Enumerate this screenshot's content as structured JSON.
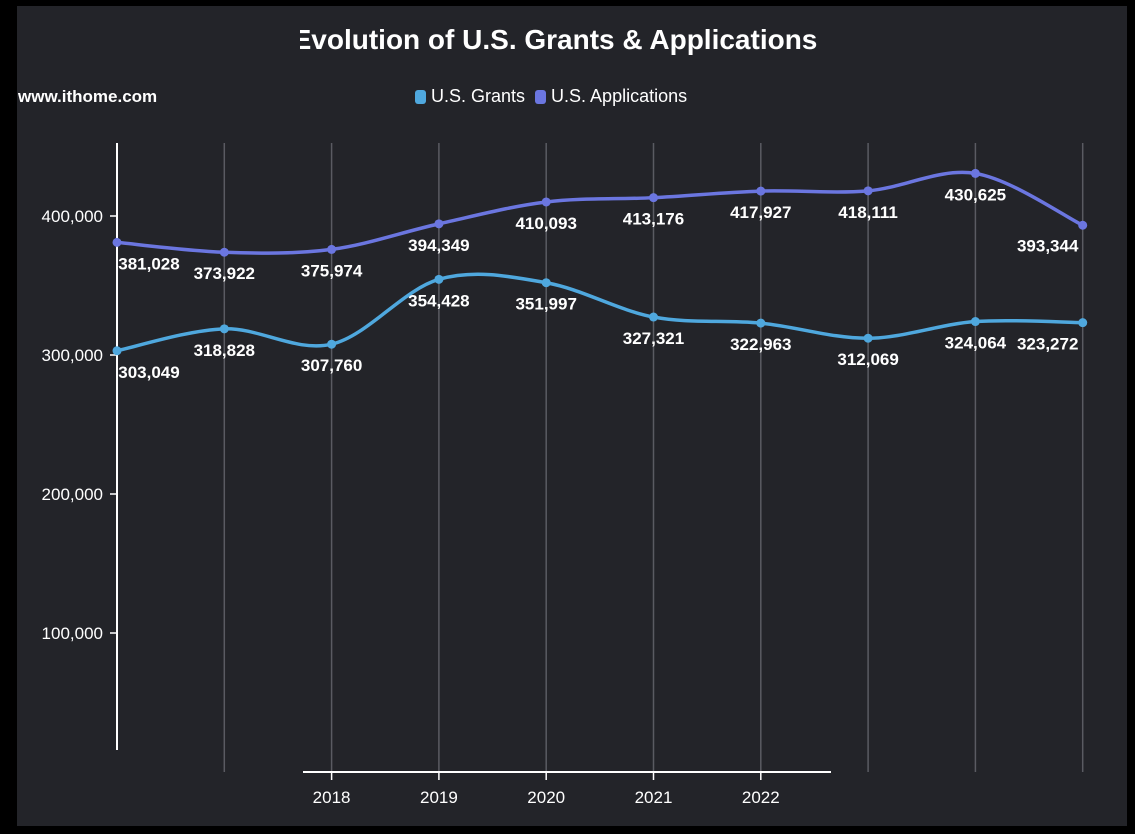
{
  "chart_data": {
    "type": "line",
    "title": "Evolution of U.S. Grants & Applications",
    "watermark": "www.ithome.com",
    "x_tick_labels": [
      "",
      "",
      "2018",
      "2019",
      "2020",
      "2021",
      "2022",
      "",
      "",
      ""
    ],
    "ylim": [
      0,
      453000
    ],
    "y_ticks": [
      100000,
      200000,
      300000,
      400000
    ],
    "y_tick_labels": [
      "100,000",
      "200,000",
      "300,000",
      "400,000"
    ],
    "grid": "vertical",
    "legend_position": "top-center",
    "series": [
      {
        "name": "U.S. Grants",
        "color": "#4fa8de",
        "values": [
          303049,
          318828,
          307760,
          354428,
          351997,
          327321,
          322963,
          312069,
          324064,
          323272
        ],
        "labels": [
          "303,049",
          "318,828",
          "307,760",
          "354,428",
          "351,997",
          "327,321",
          "322,963",
          "312,069",
          "324,064",
          "323,272"
        ]
      },
      {
        "name": "U.S. Applications",
        "color": "#6b76e0",
        "values": [
          381028,
          373922,
          375974,
          394349,
          410093,
          413176,
          417927,
          418111,
          430625,
          393344
        ],
        "labels": [
          "381,028",
          "373,922",
          "375,974",
          "394,349",
          "410,093",
          "413,176",
          "417,927",
          "418,111",
          "430,625",
          "393,344"
        ]
      }
    ]
  }
}
